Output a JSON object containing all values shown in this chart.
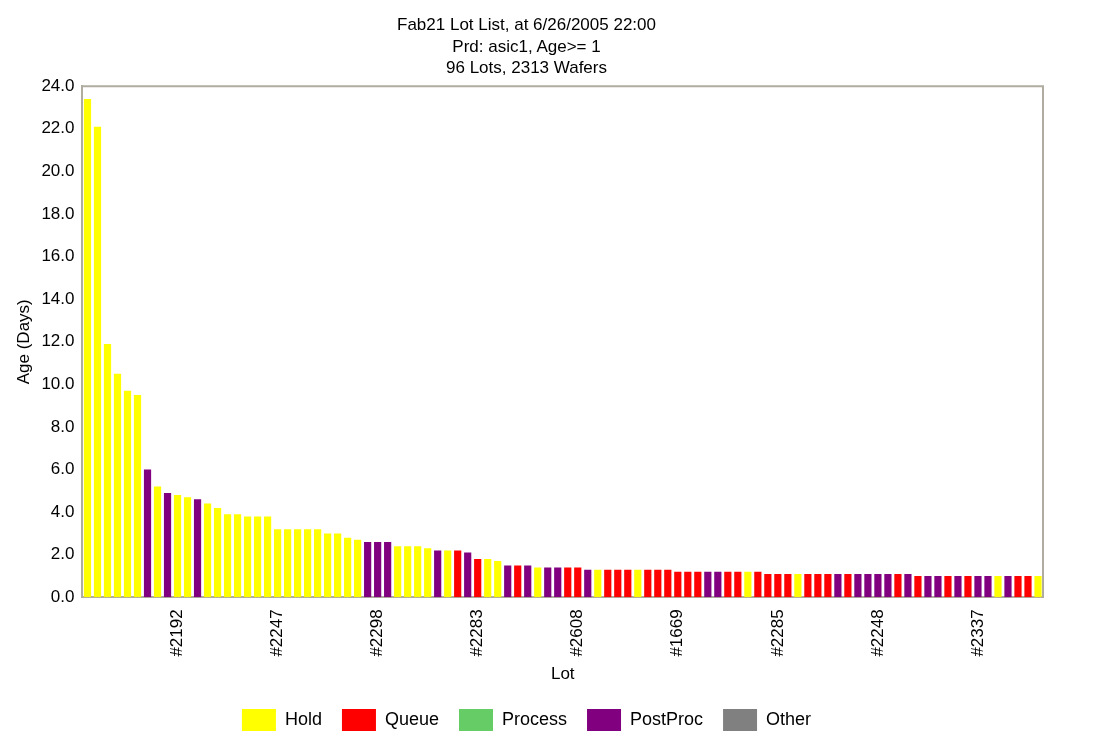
{
  "chart_data": {
    "type": "bar",
    "title": "Fab21 Lot List, at 6/26/2005 22:00",
    "subtitle": "Prd: asic1, Age>= 1\n96 Lots, 2313 Wafers",
    "xlabel": "Lot",
    "ylabel": "Age (Days)",
    "categories": [
      null,
      null,
      null,
      null,
      null,
      null,
      null,
      null,
      null,
      "#2192",
      null,
      null,
      null,
      null,
      null,
      null,
      null,
      null,
      null,
      "#2247",
      null,
      null,
      null,
      null,
      null,
      null,
      null,
      null,
      null,
      "#2298",
      null,
      null,
      null,
      null,
      null,
      null,
      null,
      null,
      null,
      "#2283",
      null,
      null,
      null,
      null,
      null,
      null,
      null,
      null,
      null,
      "#2608",
      null,
      null,
      null,
      null,
      null,
      null,
      null,
      null,
      null,
      "#1669",
      null,
      null,
      null,
      null,
      null,
      null,
      null,
      null,
      null,
      "#2285",
      null,
      null,
      null,
      null,
      null,
      null,
      null,
      null,
      null,
      "#2248",
      null,
      null,
      null,
      null,
      null,
      null,
      null,
      null,
      null,
      "#2337",
      null,
      null,
      null,
      null,
      null,
      null
    ],
    "stacked": true,
    "series": [
      {
        "name": "Hold",
        "color": "#ffff00",
        "values": [
          23.4,
          22.1,
          11.9,
          10.5,
          9.7,
          9.5,
          null,
          5.2,
          null,
          4.8,
          4.7,
          null,
          4.4,
          4.2,
          3.9,
          3.9,
          3.8,
          3.8,
          3.8,
          3.2,
          3.2,
          3.2,
          3.2,
          3.2,
          3.0,
          3.0,
          2.8,
          2.7,
          null,
          null,
          null,
          2.4,
          2.4,
          2.4,
          2.3,
          null,
          2.2,
          null,
          null,
          null,
          1.8,
          1.7,
          null,
          null,
          null,
          1.4,
          null,
          null,
          null,
          null,
          null,
          1.3,
          null,
          null,
          null,
          1.3,
          null,
          null,
          null,
          null,
          null,
          null,
          null,
          null,
          null,
          null,
          1.2,
          null,
          null,
          null,
          null,
          1.1,
          null,
          null,
          null,
          null,
          null,
          null,
          null,
          null,
          null,
          null,
          null,
          null,
          null,
          null,
          null,
          null,
          null,
          null,
          null,
          1.0,
          null,
          null,
          null,
          1.0
        ]
      },
      {
        "name": "Queue",
        "color": "#ff0000",
        "values": [
          null,
          null,
          null,
          null,
          null,
          null,
          null,
          null,
          null,
          null,
          null,
          null,
          null,
          null,
          null,
          null,
          null,
          null,
          null,
          null,
          null,
          null,
          null,
          null,
          null,
          null,
          null,
          null,
          null,
          null,
          null,
          null,
          null,
          null,
          null,
          null,
          null,
          2.2,
          null,
          1.8,
          null,
          null,
          null,
          1.5,
          null,
          null,
          null,
          null,
          1.4,
          1.4,
          null,
          null,
          1.3,
          1.3,
          1.3,
          null,
          1.3,
          1.3,
          1.3,
          1.2,
          1.2,
          1.2,
          null,
          null,
          1.2,
          1.2,
          null,
          1.2,
          1.1,
          1.1,
          1.1,
          null,
          1.1,
          1.1,
          1.1,
          null,
          1.1,
          null,
          null,
          null,
          null,
          1.1,
          null,
          1.0,
          null,
          null,
          1.0,
          null,
          1.0,
          null,
          null,
          null,
          null,
          1.0,
          1.0,
          null
        ]
      },
      {
        "name": "Process",
        "color": "#66cc66",
        "values": [
          null,
          null,
          null,
          null,
          null,
          null,
          null,
          null,
          null,
          null,
          null,
          null,
          null,
          null,
          null,
          null,
          null,
          null,
          null,
          null,
          null,
          null,
          null,
          null,
          null,
          null,
          null,
          null,
          null,
          null,
          null,
          null,
          null,
          null,
          null,
          null,
          null,
          null,
          null,
          null,
          null,
          null,
          null,
          null,
          null,
          null,
          null,
          null,
          null,
          null,
          null,
          null,
          null,
          null,
          null,
          null,
          null,
          null,
          null,
          null,
          null,
          null,
          null,
          null,
          null,
          null,
          null,
          null,
          null,
          null,
          null,
          null,
          null,
          null,
          null,
          null,
          null,
          null,
          null,
          null,
          null,
          null,
          null,
          null,
          null,
          null,
          null,
          null,
          null,
          null,
          null,
          null,
          null,
          null,
          null,
          null
        ]
      },
      {
        "name": "PostProc",
        "color": "#800080",
        "values": [
          null,
          null,
          null,
          null,
          null,
          null,
          6.0,
          null,
          4.9,
          null,
          null,
          4.6,
          null,
          null,
          null,
          null,
          null,
          null,
          null,
          null,
          null,
          null,
          null,
          null,
          null,
          null,
          null,
          null,
          2.6,
          2.6,
          2.6,
          null,
          null,
          null,
          null,
          2.2,
          null,
          null,
          2.1,
          null,
          null,
          null,
          1.5,
          null,
          1.5,
          null,
          1.4,
          1.4,
          null,
          null,
          1.3,
          null,
          null,
          null,
          null,
          null,
          null,
          null,
          null,
          null,
          null,
          null,
          1.2,
          1.2,
          null,
          null,
          null,
          null,
          null,
          null,
          null,
          null,
          null,
          null,
          null,
          1.1,
          null,
          1.1,
          1.1,
          1.1,
          1.1,
          null,
          1.1,
          null,
          1.0,
          1.0,
          null,
          1.0,
          null,
          1.0,
          1.0,
          null,
          1.0,
          null,
          null,
          null
        ]
      },
      {
        "name": "Other",
        "color": "#808080",
        "values": [
          null,
          null,
          null,
          null,
          null,
          null,
          null,
          null,
          null,
          null,
          null,
          null,
          null,
          null,
          null,
          null,
          null,
          null,
          null,
          null,
          null,
          null,
          null,
          null,
          null,
          null,
          null,
          null,
          null,
          null,
          null,
          null,
          null,
          null,
          null,
          null,
          null,
          null,
          null,
          null,
          null,
          null,
          null,
          null,
          null,
          null,
          null,
          null,
          null,
          null,
          null,
          null,
          null,
          null,
          null,
          null,
          null,
          null,
          null,
          null,
          null,
          null,
          null,
          null,
          null,
          null,
          null,
          null,
          null,
          null,
          null,
          null,
          null,
          null,
          null,
          null,
          null,
          null,
          null,
          null,
          null,
          null,
          null,
          null,
          null,
          null,
          null,
          null,
          null,
          null,
          null,
          null,
          null,
          null,
          null,
          null
        ]
      }
    ],
    "ylim": [
      0,
      24
    ],
    "yticks": [
      {
        "value": 0,
        "label": "0.0"
      },
      {
        "value": 2,
        "label": "2.0"
      },
      {
        "value": 4,
        "label": "4.0"
      },
      {
        "value": 6,
        "label": "6.0"
      },
      {
        "value": 8,
        "label": "8.0"
      },
      {
        "value": 10,
        "label": "10.0"
      },
      {
        "value": 12,
        "label": "12.0"
      },
      {
        "value": 14,
        "label": "14.0"
      },
      {
        "value": 16,
        "label": "16.0"
      },
      {
        "value": 18,
        "label": "18.0"
      },
      {
        "value": 20,
        "label": "20.0"
      },
      {
        "value": 22,
        "label": "22.0"
      },
      {
        "value": 24,
        "label": "24.0"
      }
    ],
    "grid": false,
    "legend": "bottom"
  }
}
